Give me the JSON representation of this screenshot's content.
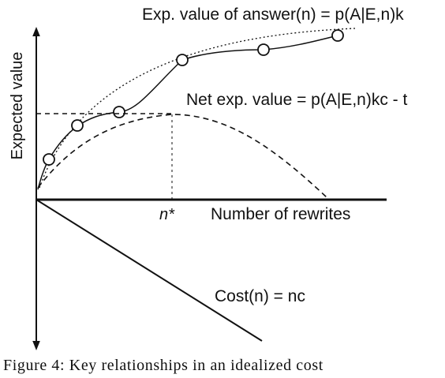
{
  "diagram": {
    "y_axis_label": "Expected value",
    "x_axis_label": "Number of rewrites",
    "n_star_label": "n*",
    "answer_curve_label": "Exp. value of answer(n) = p(A|E,n)k",
    "net_curve_label": "Net exp. value = p(A|E,n)kc - t",
    "cost_curve_label": "Cost(n) = nc"
  },
  "caption": "Figure 4: Key relationships in an idealized cost"
}
